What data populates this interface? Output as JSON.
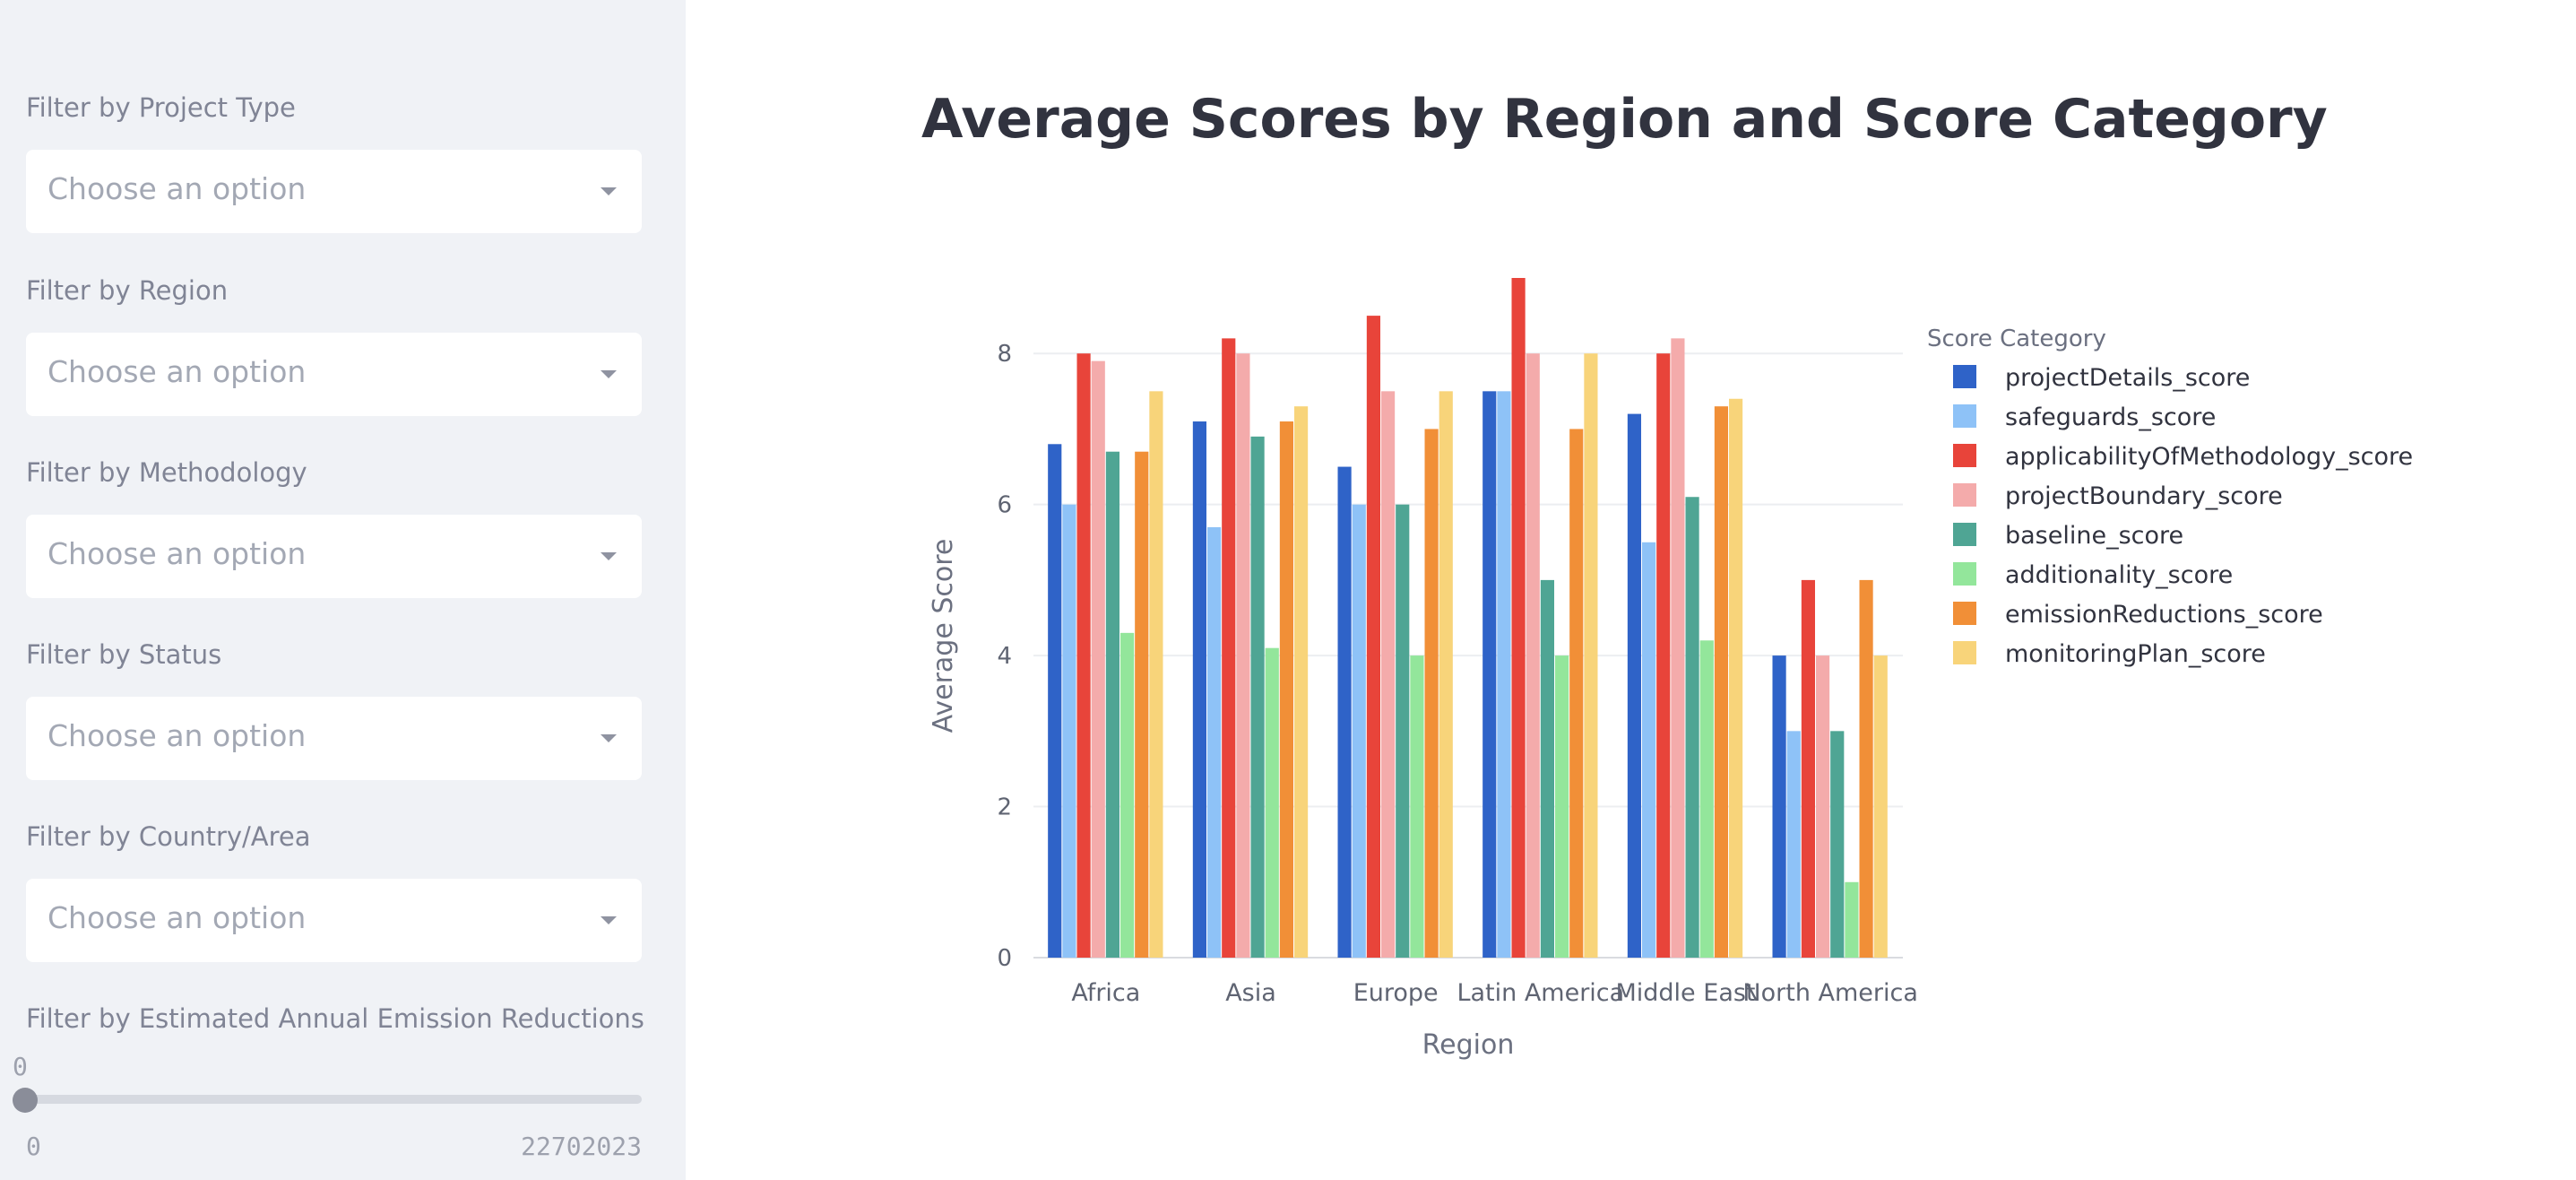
{
  "sidebar": {
    "filters": [
      {
        "label": "Filter by Project Type",
        "placeholder": "Choose an option"
      },
      {
        "label": "Filter by Region",
        "placeholder": "Choose an option"
      },
      {
        "label": "Filter by Methodology",
        "placeholder": "Choose an option"
      },
      {
        "label": "Filter by Status",
        "placeholder": "Choose an option"
      },
      {
        "label": "Filter by Country/Area",
        "placeholder": "Choose an option"
      }
    ],
    "slider": {
      "label": "Filter by Estimated Annual Emission Reductions",
      "current": "0",
      "min": "0",
      "max": "22702023",
      "value_fraction": 0
    }
  },
  "main": {
    "title": "Average Scores by Region and Score Category"
  },
  "chart_data": {
    "type": "bar",
    "xlabel": "Region",
    "ylabel": "Average Score",
    "ylim": [
      0,
      9
    ],
    "yticks": [
      0,
      2,
      4,
      6,
      8
    ],
    "grid": true,
    "legend_title": "Score Category",
    "legend_position": "right",
    "categories": [
      "Africa",
      "Asia",
      "Europe",
      "Latin America",
      "Middle East",
      "North America"
    ],
    "series": [
      {
        "name": "projectDetails_score",
        "color": "#2f63c8",
        "values": [
          6.8,
          7.1,
          6.5,
          7.5,
          7.2,
          4.0
        ]
      },
      {
        "name": "safeguards_score",
        "color": "#8ec2f7",
        "values": [
          6.0,
          5.7,
          6.0,
          7.5,
          5.5,
          3.0
        ]
      },
      {
        "name": "applicabilityOfMethodology_score",
        "color": "#e8443a",
        "values": [
          8.0,
          8.2,
          8.5,
          9.0,
          8.0,
          5.0
        ]
      },
      {
        "name": "projectBoundary_score",
        "color": "#f4abab",
        "values": [
          7.9,
          8.0,
          7.5,
          8.0,
          8.2,
          4.0
        ]
      },
      {
        "name": "baseline_score",
        "color": "#4fa594",
        "values": [
          6.7,
          6.9,
          6.0,
          5.0,
          6.1,
          3.0
        ]
      },
      {
        "name": "additionality_score",
        "color": "#93e69b",
        "values": [
          4.3,
          4.1,
          4.0,
          4.0,
          4.2,
          1.0
        ]
      },
      {
        "name": "emissionReductions_score",
        "color": "#f18f37",
        "values": [
          6.7,
          7.1,
          7.0,
          7.0,
          7.3,
          5.0
        ]
      },
      {
        "name": "monitoringPlan_score",
        "color": "#f8d47a",
        "values": [
          7.5,
          7.3,
          7.5,
          8.0,
          7.4,
          4.0
        ]
      }
    ]
  }
}
